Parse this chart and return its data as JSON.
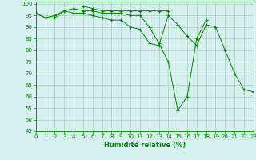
{
  "xlabel": "Humidité relative (%)",
  "xlim": [
    0,
    23
  ],
  "ylim": [
    45,
    101
  ],
  "yticks": [
    45,
    50,
    55,
    60,
    65,
    70,
    75,
    80,
    85,
    90,
    95,
    100
  ],
  "xticks": [
    0,
    1,
    2,
    3,
    4,
    5,
    6,
    7,
    8,
    9,
    10,
    11,
    12,
    13,
    14,
    15,
    16,
    17,
    18,
    19,
    20,
    21,
    22,
    23
  ],
  "background_color": "#d5f0ee",
  "grid_color": "#b0c8c0",
  "line_color": "#008800",
  "series": [
    [
      96,
      94,
      94,
      97,
      96,
      96,
      95,
      94,
      93,
      93,
      90,
      89,
      83,
      82,
      95,
      91,
      86,
      82,
      91,
      90,
      80,
      70,
      63,
      62
    ],
    [
      96,
      94,
      95,
      97,
      98,
      97,
      97,
      96,
      96,
      96,
      95,
      95,
      90,
      83,
      75,
      54,
      60,
      85,
      93,
      null,
      null,
      null,
      null,
      null
    ],
    [
      96,
      null,
      null,
      null,
      null,
      99,
      98,
      97,
      97,
      97,
      97,
      97,
      97,
      97,
      97,
      null,
      null,
      null,
      null,
      null,
      null,
      null,
      null,
      null
    ]
  ]
}
